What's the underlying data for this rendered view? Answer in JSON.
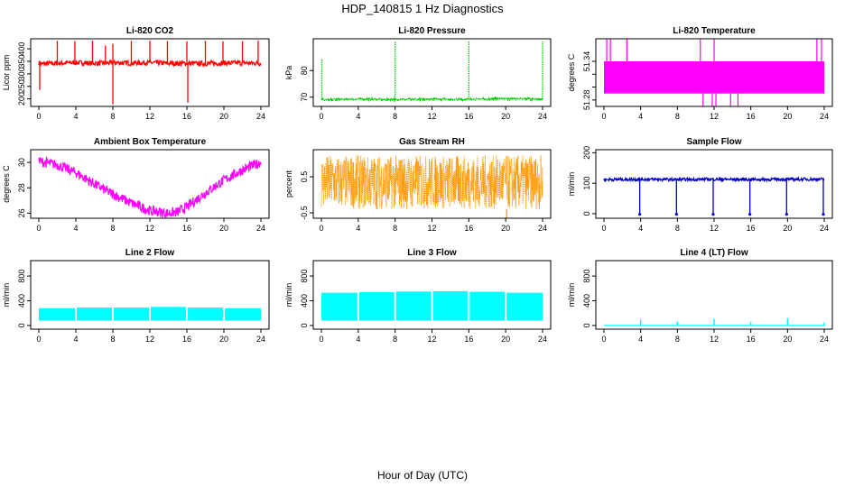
{
  "figure": {
    "title": "HDP_140815  1 Hz Diagnostics",
    "xlabel": "Hour of Day (UTC)"
  },
  "chart_data": [
    {
      "type": "line",
      "title": "Li-820 CO2",
      "ylabel": "Licor ppm",
      "xlim": [
        0,
        24
      ],
      "ylim": [
        170,
        440
      ],
      "xticks": [
        0,
        4,
        8,
        12,
        16,
        20,
        24
      ],
      "yticks": [
        200,
        250,
        300,
        350,
        400
      ],
      "color": "#ff0000",
      "style": "noisy",
      "series": [
        {
          "x": [
            0,
            0.2,
            2,
            4,
            6,
            8,
            10,
            12,
            14,
            16,
            18,
            20,
            22,
            24
          ],
          "y": [
            345,
            340,
            342,
            345,
            342,
            344,
            343,
            345,
            342,
            342,
            341,
            343,
            344,
            342
          ]
        }
      ],
      "noise": 10,
      "spikes": [
        {
          "x": 0.1,
          "y": 236
        },
        {
          "x": 2.0,
          "y": 432
        },
        {
          "x": 3.9,
          "y": 431
        },
        {
          "x": 5.8,
          "y": 433
        },
        {
          "x": 7.2,
          "y": 413
        },
        {
          "x": 8.0,
          "y": 178
        },
        {
          "x": 8.0,
          "y": 420
        },
        {
          "x": 10.0,
          "y": 432
        },
        {
          "x": 12.0,
          "y": 432
        },
        {
          "x": 13.9,
          "y": 431
        },
        {
          "x": 16.1,
          "y": 185
        },
        {
          "x": 16.0,
          "y": 430
        },
        {
          "x": 18.0,
          "y": 432
        },
        {
          "x": 19.9,
          "y": 430
        },
        {
          "x": 22.0,
          "y": 431
        },
        {
          "x": 23.7,
          "y": 433
        }
      ]
    },
    {
      "type": "line",
      "title": "Li-820 Pressure",
      "ylabel": "kPa",
      "xlim": [
        0,
        24
      ],
      "ylim": [
        66.5,
        92
      ],
      "xticks": [
        0,
        4,
        8,
        12,
        16,
        20,
        24
      ],
      "yticks": [
        70,
        80
      ],
      "color": "#00cc00",
      "style": "dotted",
      "series": [
        {
          "x": [
            0,
            0.3,
            4,
            8,
            12,
            16,
            20,
            24
          ],
          "y": [
            69.2,
            69.0,
            69.3,
            69.1,
            69.3,
            69.2,
            69.4,
            69.3
          ]
        }
      ],
      "noise": 0.3,
      "spikes": [
        {
          "x": 0.05,
          "y": 84.5
        },
        {
          "x": 8.0,
          "y": 91.0
        },
        {
          "x": 16.0,
          "y": 91.2
        },
        {
          "x": 24.0,
          "y": 91.0
        }
      ]
    },
    {
      "type": "line",
      "title": "Li-820 Temperature",
      "ylabel": "degrees C",
      "xlim": [
        0,
        24
      ],
      "ylim": [
        51.27,
        51.375
      ],
      "xticks": [
        0,
        4,
        8,
        12,
        16,
        20,
        24
      ],
      "yticks": [
        51.28,
        51.3,
        51.32,
        51.34
      ],
      "ytick_labels": [
        "51.28",
        "",
        "",
        "51.34"
      ],
      "color": "#ff00ff",
      "style": "band",
      "band": [
        51.29,
        51.34
      ],
      "spikes_up": [
        0.3,
        0.7,
        2.5,
        10.5,
        12.0,
        23.2,
        23.7
      ],
      "spikes_down": [
        10.8,
        11.8,
        12.2,
        13.8,
        14.6
      ]
    },
    {
      "type": "line",
      "title": "Ambient Box Temperature",
      "ylabel": "degrees C",
      "xlim": [
        0,
        24
      ],
      "ylim": [
        25.6,
        31.0
      ],
      "xticks": [
        0,
        4,
        8,
        12,
        16,
        20,
        24
      ],
      "yticks": [
        26,
        28,
        30
      ],
      "color": "#ff00ff",
      "style": "noisy",
      "series": [
        {
          "x": [
            0,
            2,
            4,
            6,
            8,
            10,
            12,
            14,
            15,
            16,
            18,
            20,
            22,
            24
          ],
          "y": [
            30.1,
            29.8,
            29.2,
            28.3,
            27.5,
            26.8,
            26.2,
            26.0,
            26.1,
            26.5,
            27.6,
            28.6,
            29.4,
            30.0
          ]
        }
      ],
      "noise": 0.4
    },
    {
      "type": "line",
      "title": "Gas Stream RH",
      "ylabel": "percent",
      "xlim": [
        0,
        24
      ],
      "ylim": [
        -0.65,
        1.25
      ],
      "xticks": [
        0,
        4,
        8,
        12,
        16,
        20,
        24
      ],
      "yticks": [
        -0.5,
        0.5
      ],
      "color": "#ff9900",
      "style": "band",
      "band": [
        -0.4,
        1.1
      ],
      "spikes_down": [
        20.1
      ]
    },
    {
      "type": "line",
      "title": "Sample Flow",
      "ylabel": "ml/min",
      "xlim": [
        0,
        24
      ],
      "ylim": [
        -15,
        210
      ],
      "xticks": [
        0,
        4,
        8,
        12,
        16,
        20,
        24
      ],
      "yticks": [
        0,
        100,
        200
      ],
      "color": "#0000cc",
      "style": "noisy",
      "series": [
        {
          "x": [
            0,
            4,
            8,
            12,
            16,
            20,
            24
          ],
          "y": [
            112,
            113,
            112,
            113,
            112,
            113,
            113
          ]
        }
      ],
      "noise": 5,
      "dips": [
        {
          "x": 3.9,
          "y": -2
        },
        {
          "x": 7.9,
          "y": -2
        },
        {
          "x": 11.9,
          "y": -2
        },
        {
          "x": 15.9,
          "y": -2
        },
        {
          "x": 19.9,
          "y": -2
        },
        {
          "x": 23.9,
          "y": -2
        }
      ]
    },
    {
      "type": "line",
      "title": "Line 2 Flow",
      "ylabel": "ml/min",
      "xlim": [
        0,
        24
      ],
      "ylim": [
        -60,
        1050
      ],
      "xticks": [
        0,
        4,
        8,
        12,
        16,
        20,
        24
      ],
      "yticks": [
        0,
        400,
        800
      ],
      "color": "#00ffff",
      "style": "bars",
      "blocks": [
        {
          "x0": 0,
          "x1": 3.9,
          "lo": 80,
          "hi": 280
        },
        {
          "x0": 4.1,
          "x1": 7.9,
          "lo": 80,
          "hi": 290
        },
        {
          "x0": 8.1,
          "x1": 11.9,
          "lo": 80,
          "hi": 290
        },
        {
          "x0": 12.1,
          "x1": 15.9,
          "lo": 80,
          "hi": 300
        },
        {
          "x0": 16.1,
          "x1": 19.9,
          "lo": 80,
          "hi": 290
        },
        {
          "x0": 20.1,
          "x1": 24,
          "lo": 80,
          "hi": 280
        }
      ]
    },
    {
      "type": "line",
      "title": "Line 3 Flow",
      "ylabel": "ml/min",
      "xlim": [
        0,
        24
      ],
      "ylim": [
        -60,
        1050
      ],
      "xticks": [
        0,
        4,
        8,
        12,
        16,
        20,
        24
      ],
      "yticks": [
        0,
        400,
        800
      ],
      "color": "#00ffff",
      "style": "bars",
      "blocks": [
        {
          "x0": 0,
          "x1": 3.9,
          "lo": 80,
          "hi": 530
        },
        {
          "x0": 4.1,
          "x1": 7.9,
          "lo": 80,
          "hi": 540
        },
        {
          "x0": 8.1,
          "x1": 11.9,
          "lo": 80,
          "hi": 550
        },
        {
          "x0": 12.1,
          "x1": 15.9,
          "lo": 80,
          "hi": 555
        },
        {
          "x0": 16.1,
          "x1": 19.9,
          "lo": 80,
          "hi": 545
        },
        {
          "x0": 20.1,
          "x1": 24,
          "lo": 80,
          "hi": 530
        }
      ]
    },
    {
      "type": "line",
      "title": "Line 4 (LT) Flow",
      "ylabel": "ml/min",
      "xlim": [
        0,
        24
      ],
      "ylim": [
        -60,
        1050
      ],
      "xticks": [
        0,
        4,
        8,
        12,
        16,
        20,
        24
      ],
      "yticks": [
        0,
        400,
        800
      ],
      "color": "#00ffff",
      "style": "flat",
      "base": 0,
      "spikes": [
        {
          "x": 4.0,
          "y": 95
        },
        {
          "x": 8.0,
          "y": 55
        },
        {
          "x": 12.0,
          "y": 110
        },
        {
          "x": 16.0,
          "y": 60
        },
        {
          "x": 20.0,
          "y": 115
        },
        {
          "x": 24.0,
          "y": 50
        }
      ]
    }
  ]
}
